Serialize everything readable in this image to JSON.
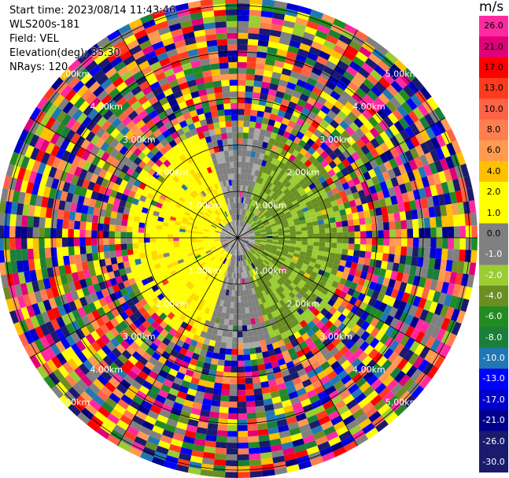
{
  "info": {
    "start_time": "Start time: 2023/08/14 11:43:46",
    "instrument": "WLS200s-181",
    "field": "Field: VEL",
    "elevation": "Elevation(deg): 35.30",
    "nrays": "NRays: 120"
  },
  "colorbar": {
    "title": "m/s",
    "labels": [
      "26.0",
      "21.0",
      "17.0",
      "13.0",
      "10.0",
      "8.0",
      "6.0",
      "4.0",
      "2.0",
      "1.0",
      "0.0",
      "-1.0",
      "-2.0",
      "-4.0",
      "-6.0",
      "-8.0",
      "-10.0",
      "-13.0",
      "-17.0",
      "-21.0",
      "-26.0",
      "-30.0"
    ],
    "colors": [
      "#ff2a9f",
      "#e0007a",
      "#ff0000",
      "#ff3b1f",
      "#ff6347",
      "#ff7e50",
      "#ff9a50",
      "#ffc000",
      "#ffff00",
      "#ffff00",
      "#808080",
      "#808080",
      "#9acd32",
      "#6b8e23",
      "#228b22",
      "#1a7f3a",
      "#1f78b4",
      "#0000ff",
      "#0000cd",
      "#00008b",
      "#1a1a6e",
      "#1a1a6e"
    ],
    "value_bands": [
      26,
      21,
      17,
      13,
      10,
      8,
      6,
      4,
      2,
      1,
      0,
      -1,
      -2,
      -4,
      -6,
      -8,
      -10,
      -13,
      -17,
      -21,
      -26,
      -30
    ]
  },
  "ring_labels": [
    "1.00km",
    "2.00km",
    "3.00km",
    "4.00km",
    "5.00km"
  ],
  "chart_data": {
    "type": "heatmap",
    "projection": "polar PPI",
    "field": "VEL",
    "units": "m/s",
    "elevation_deg": 35.3,
    "nrays": 120,
    "range_rings_km": [
      1,
      2,
      3,
      4,
      5
    ],
    "value_range": [
      -30,
      26
    ],
    "near_range_pattern": "positive velocities (yellow, ~2 m/s) to the west, negative velocities (green, ~-2 to -4 m/s) to the east, near 0 (gray) at the center"
  }
}
